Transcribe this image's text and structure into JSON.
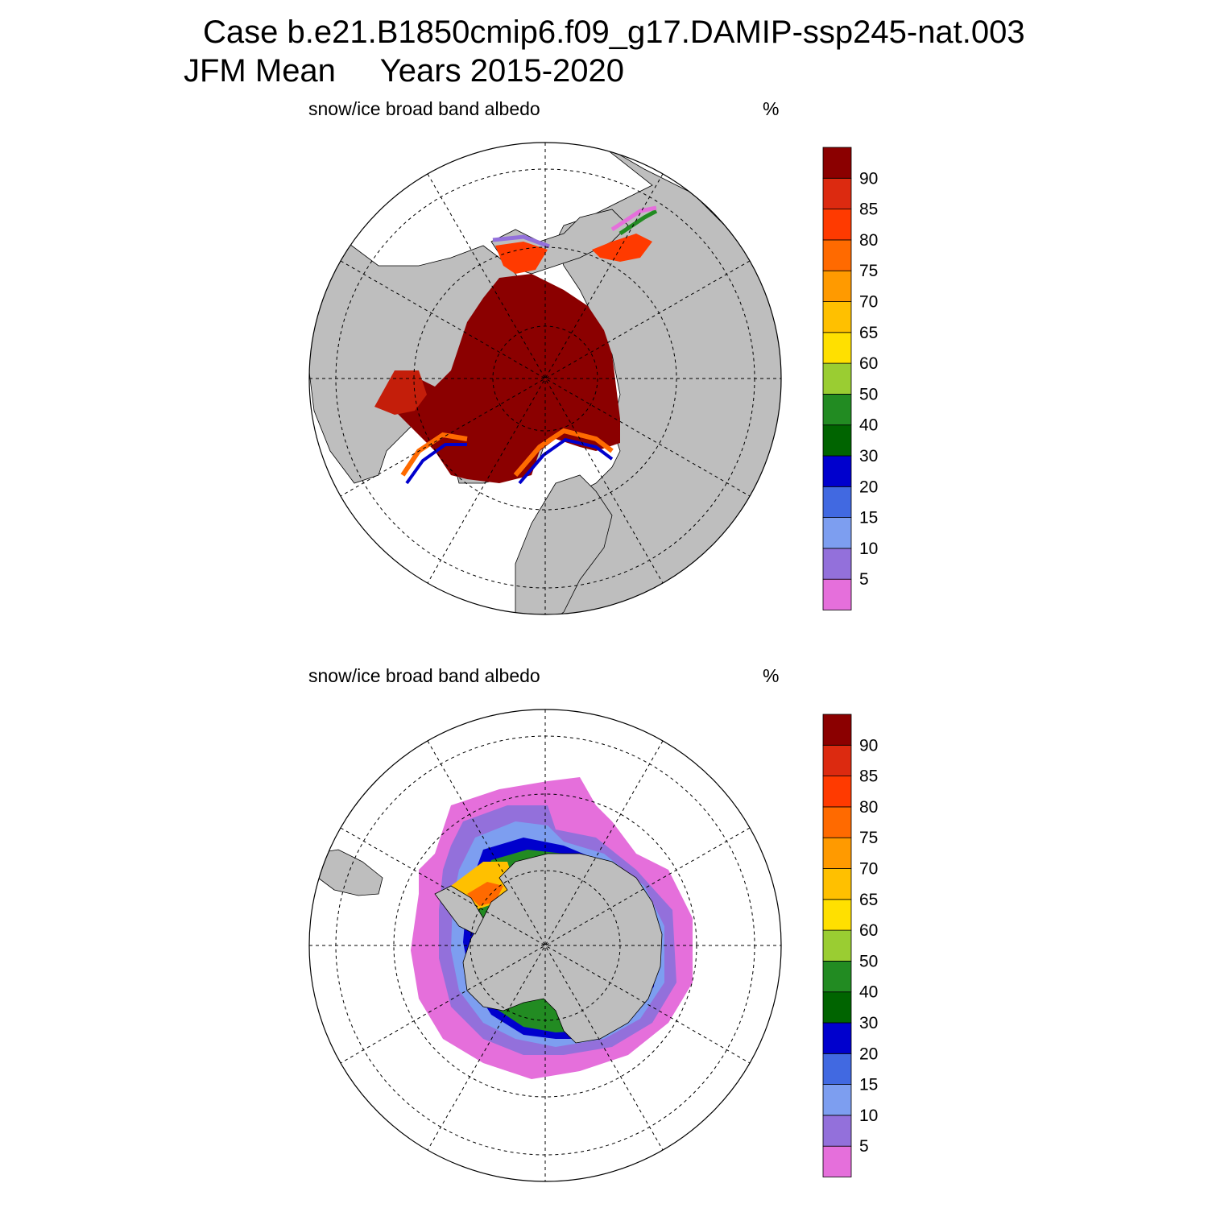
{
  "header": {
    "case_line": "Case b.e21.B1850cmip6.f09_g17.DAMIP-ssp245-nat.003",
    "period_line": "JFM Mean     Years 2015-2020"
  },
  "colors": {
    "land": "#bebebe",
    "ocean": "#ffffff",
    "levels": [
      "#e56fdb",
      "#9370db",
      "#7d9ef0",
      "#4169e1",
      "#0000cd",
      "#006400",
      "#228b22",
      "#9acd32",
      "#ffe000",
      "#ffc000",
      "#ff9a00",
      "#ff6a00",
      "#ff3a00",
      "#dc2a10",
      "#8b0000"
    ]
  },
  "colorbar": {
    "labels": [
      "90",
      "85",
      "80",
      "75",
      "70",
      "65",
      "60",
      "50",
      "40",
      "30",
      "20",
      "15",
      "10",
      "5"
    ]
  },
  "panels": [
    {
      "id": "north",
      "title": "snow/ice broad band albedo",
      "units": "%"
    },
    {
      "id": "south",
      "title": "snow/ice broad band albedo",
      "units": "%"
    }
  ]
}
